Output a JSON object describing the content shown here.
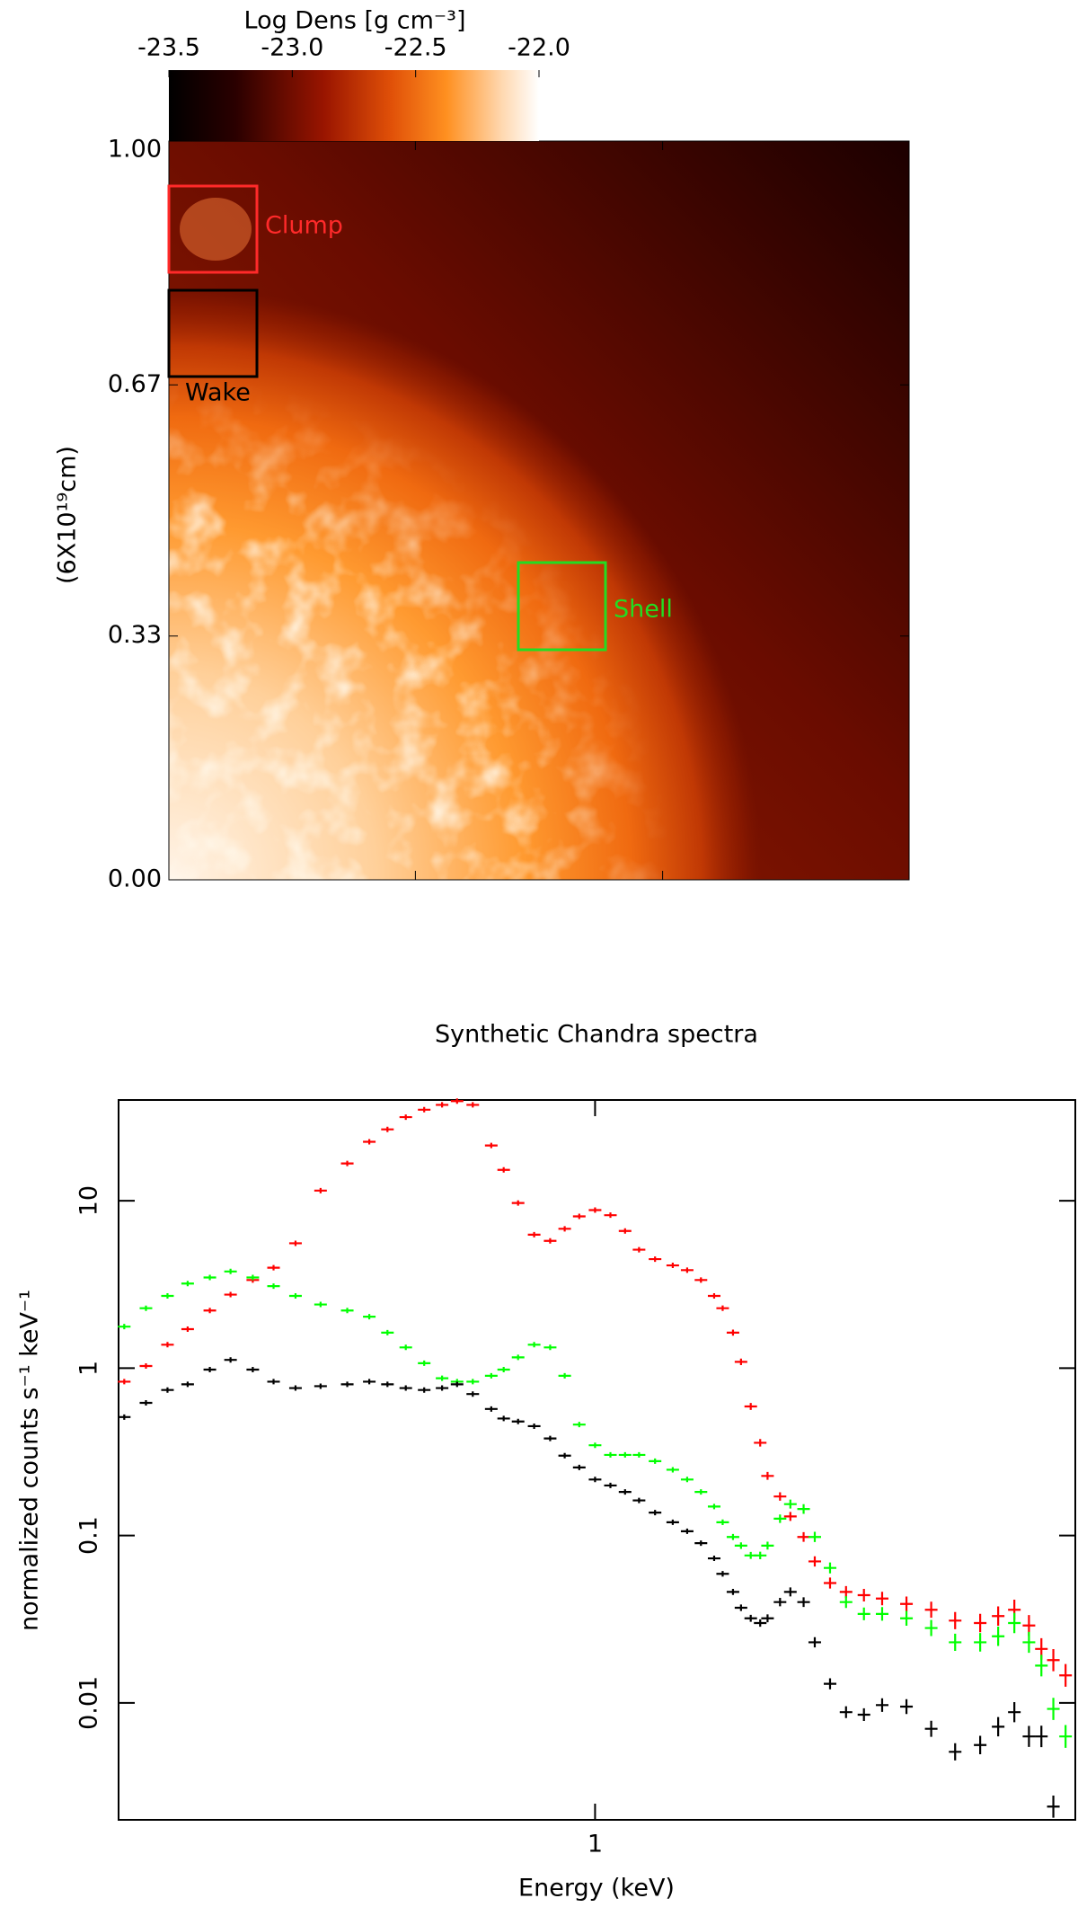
{
  "chart_data": [
    {
      "type": "heatmap",
      "colorbar_label": "Log Dens [g cm⁻³]",
      "clim": [
        -23.5,
        -22.0
      ],
      "cticks": [
        -23.5,
        {
          "value": -23.0,
          "label": "-23.0"
        },
        -22.5,
        {
          "value": -22.0,
          "label": "-22.0"
        }
      ],
      "y_label": "(6X10¹⁹cm)",
      "xlim": [
        0,
        1
      ],
      "xticks": [
        0.333,
        0.667
      ],
      "ylim": [
        0,
        1
      ],
      "yticks": [
        {
          "value": 1,
          "label": "1.00"
        },
        {
          "value": 0.67,
          "label": "0.67"
        },
        {
          "value": 0.33,
          "label": "0.33"
        },
        {
          "value": 0,
          "label": "0.00"
        }
      ],
      "annotations": [
        {
          "text": "Clump",
          "color": "#ff2a2a"
        },
        {
          "text": "Wake",
          "color": "#000000"
        },
        {
          "text": "Shell",
          "color": "#22dd22"
        }
      ]
    },
    {
      "type": "scatter",
      "title": "Synthetic Chandra spectra",
      "x_label": "Energy (keV)",
      "y_label": "normalized counts s⁻¹ keV⁻¹",
      "xlog": true,
      "ylog": true,
      "xlim": [
        0.22,
        4.6
      ],
      "xticks": [
        1
      ],
      "ylim": [
        0.002,
        40
      ],
      "yticks": [
        0.01,
        0.1,
        1,
        10
      ],
      "x": [
        0.224,
        0.24,
        0.257,
        0.274,
        0.294,
        0.314,
        0.337,
        0.36,
        0.386,
        0.418,
        0.455,
        0.488,
        0.517,
        0.548,
        0.581,
        0.615,
        0.645,
        0.678,
        0.719,
        0.748,
        0.783,
        0.824,
        0.867,
        0.908,
        0.951,
        1,
        1.05,
        1.1,
        1.15,
        1.21,
        1.28,
        1.34,
        1.4,
        1.46,
        1.5,
        1.55,
        1.59,
        1.64,
        1.69,
        1.73,
        1.8,
        1.86,
        1.94,
        2.01,
        2.11,
        2.22,
        2.35,
        2.49,
        2.69,
        2.91,
        3.14,
        3.4,
        3.6,
        3.79,
        3.97,
        4.13,
        4.29,
        4.46
      ],
      "series": [
        {
          "color": "#ff0000",
          "values": [
            0.83,
            1.03,
            1.38,
            1.71,
            2.21,
            2.75,
            3.36,
            3.98,
            5.57,
            11.5,
            16.7,
            22.5,
            26.7,
            31.6,
            35,
            37.4,
            39.4,
            37.4,
            21.4,
            15.3,
            9.7,
            6.27,
            5.76,
            6.8,
            8.07,
            8.8,
            8.2,
            6.6,
            5.1,
            4.48,
            4.11,
            3.85,
            3.36,
            2.7,
            2.28,
            1.63,
            1.09,
            0.59,
            0.358,
            0.227,
            0.171,
            0.13,
            0.098,
            0.07,
            0.052,
            0.046,
            0.044,
            0.042,
            0.039,
            0.036,
            0.031,
            0.03,
            0.033,
            0.036,
            0.029,
            0.021,
            0.018,
            0.0146
          ]
        },
        {
          "color": "#00ff00",
          "values": [
            1.77,
            2.28,
            2.7,
            3.2,
            3.48,
            3.78,
            3.48,
            3.09,
            2.7,
            2.4,
            2.21,
            2.03,
            1.63,
            1.33,
            1.07,
            0.87,
            0.83,
            0.83,
            0.9,
            0.98,
            1.16,
            1.38,
            1.33,
            0.9,
            0.46,
            0.346,
            0.303,
            0.303,
            0.303,
            0.278,
            0.247,
            0.216,
            0.182,
            0.149,
            0.12,
            0.098,
            0.087,
            0.076,
            0.076,
            0.087,
            0.126,
            0.154,
            0.144,
            0.098,
            0.064,
            0.04,
            0.034,
            0.034,
            0.032,
            0.028,
            0.023,
            0.023,
            0.025,
            0.03,
            0.023,
            0.0167,
            0.0092,
            0.0063
          ]
        },
        {
          "color": "#000000",
          "values": [
            0.51,
            0.62,
            0.74,
            0.8,
            0.98,
            1.12,
            0.98,
            0.83,
            0.76,
            0.78,
            0.8,
            0.83,
            0.8,
            0.76,
            0.74,
            0.76,
            0.8,
            0.7,
            0.57,
            0.5,
            0.48,
            0.45,
            0.38,
            0.3,
            0.255,
            0.216,
            0.199,
            0.182,
            0.162,
            0.137,
            0.12,
            0.106,
            0.09,
            0.073,
            0.059,
            0.046,
            0.037,
            0.032,
            0.03,
            0.032,
            0.04,
            0.046,
            0.04,
            0.023,
            0.013,
            0.0088,
            0.0085,
            0.0097,
            0.0095,
            0.007,
            0.0051,
            0.0056,
            0.0072,
            0.0088,
            0.0063,
            0.0063,
            0.0024,
            null
          ]
        }
      ]
    }
  ]
}
